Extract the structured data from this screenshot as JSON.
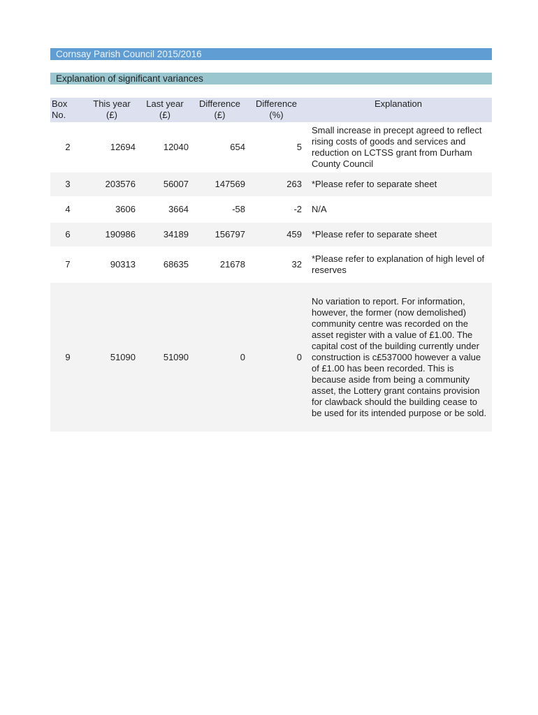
{
  "title": "Cornsay Parish Council 2015/2016",
  "subtitle": "Explanation of significant variances",
  "headers": {
    "box": [
      "Box",
      "No."
    ],
    "this_year": [
      "This year",
      "(£)"
    ],
    "last_year": [
      "Last year",
      "(£)"
    ],
    "diff": [
      "Difference",
      "(£)"
    ],
    "diff_pct": [
      "Difference",
      "(%)"
    ],
    "explanation": "Explanation"
  },
  "rows": [
    {
      "box": "2",
      "this_year": "12694",
      "last_year": "12040",
      "diff": "654",
      "diff_pct": "5",
      "explanation": "Small increase in precept agreed to reflect rising costs of goods and services and reduction on LCTSS grant from Durham County Council"
    },
    {
      "box": "3",
      "this_year": "203576",
      "last_year": "56007",
      "diff": "147569",
      "diff_pct": "263",
      "explanation": "*Please refer to separate sheet"
    },
    {
      "box": "4",
      "this_year": "3606",
      "last_year": "3664",
      "diff": "-58",
      "diff_pct": "-2",
      "explanation": "N/A"
    },
    {
      "box": "6",
      "this_year": "190986",
      "last_year": "34189",
      "diff": "156797",
      "diff_pct": "459",
      "explanation": "*Please refer to separate sheet"
    },
    {
      "box": "7",
      "this_year": "90313",
      "last_year": "68635",
      "diff": "21678",
      "diff_pct": "32",
      "explanation": "*Please refer to explanation of high level of reserves"
    },
    {
      "box": "9",
      "this_year": "51090",
      "last_year": "51090",
      "diff": "0",
      "diff_pct": "0",
      "explanation": "No variation to report.  For information, however, the former (now demolished) community centre was recorded on the asset register with a value of £1.00.  The capital cost of the building currently under construction is c£537000 however a value of £1.00 has been recorded.  This is because aside from being a community asset, the Lottery grant contains provision for clawback should the building cease to be used for its intended purpose or be sold."
    }
  ]
}
